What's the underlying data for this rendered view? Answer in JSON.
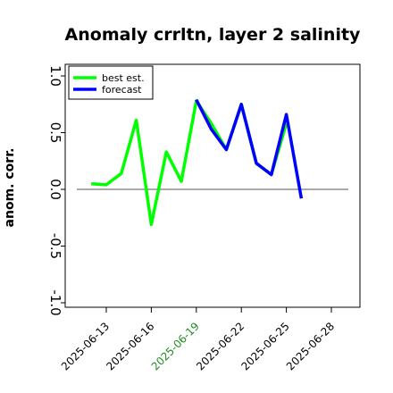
{
  "chart_data": {
    "type": "line",
    "title": "Anomaly crrltn, layer 2 salinity",
    "xlabel": "",
    "ylabel": "anom. corr.",
    "ylim": [
      -1.0,
      1.0
    ],
    "yticks": [
      "-1.0",
      "-0.5",
      "0.0",
      "0.5",
      "1.0"
    ],
    "xticks": [
      "2025-06-13",
      "2025-06-16",
      "2025-06-19",
      "2025-06-22",
      "2025-06-25",
      "2025-06-28"
    ],
    "highlighted_xtick": "2025-06-19",
    "highlight_color": "#228b22",
    "reference_line": 0.0,
    "legend_position": "top-left",
    "x": [
      "2025-06-12",
      "2025-06-13",
      "2025-06-14",
      "2025-06-15",
      "2025-06-16",
      "2025-06-17",
      "2025-06-18",
      "2025-06-19",
      "2025-06-20",
      "2025-06-21",
      "2025-06-22",
      "2025-06-23",
      "2025-06-24",
      "2025-06-25",
      "2025-06-26"
    ],
    "series": [
      {
        "name": "best est.",
        "color": "#00ff00",
        "x": [
          "2025-06-12",
          "2025-06-13",
          "2025-06-14",
          "2025-06-15",
          "2025-06-16",
          "2025-06-17",
          "2025-06-18",
          "2025-06-19",
          "2025-06-20",
          "2025-06-21",
          "2025-06-22",
          "2025-06-23",
          "2025-06-24",
          "2025-06-25"
        ],
        "values": [
          0.05,
          0.04,
          0.14,
          0.61,
          -0.31,
          0.33,
          0.07,
          0.78,
          0.58,
          0.35,
          0.75,
          0.23,
          0.13,
          0.58
        ]
      },
      {
        "name": "forecast",
        "color": "#0000ff",
        "x": [
          "2025-06-19",
          "2025-06-20",
          "2025-06-21",
          "2025-06-22",
          "2025-06-23",
          "2025-06-24",
          "2025-06-25",
          "2025-06-26"
        ],
        "values": [
          0.79,
          0.53,
          0.35,
          0.75,
          0.23,
          0.13,
          0.66,
          -0.08
        ]
      }
    ]
  }
}
